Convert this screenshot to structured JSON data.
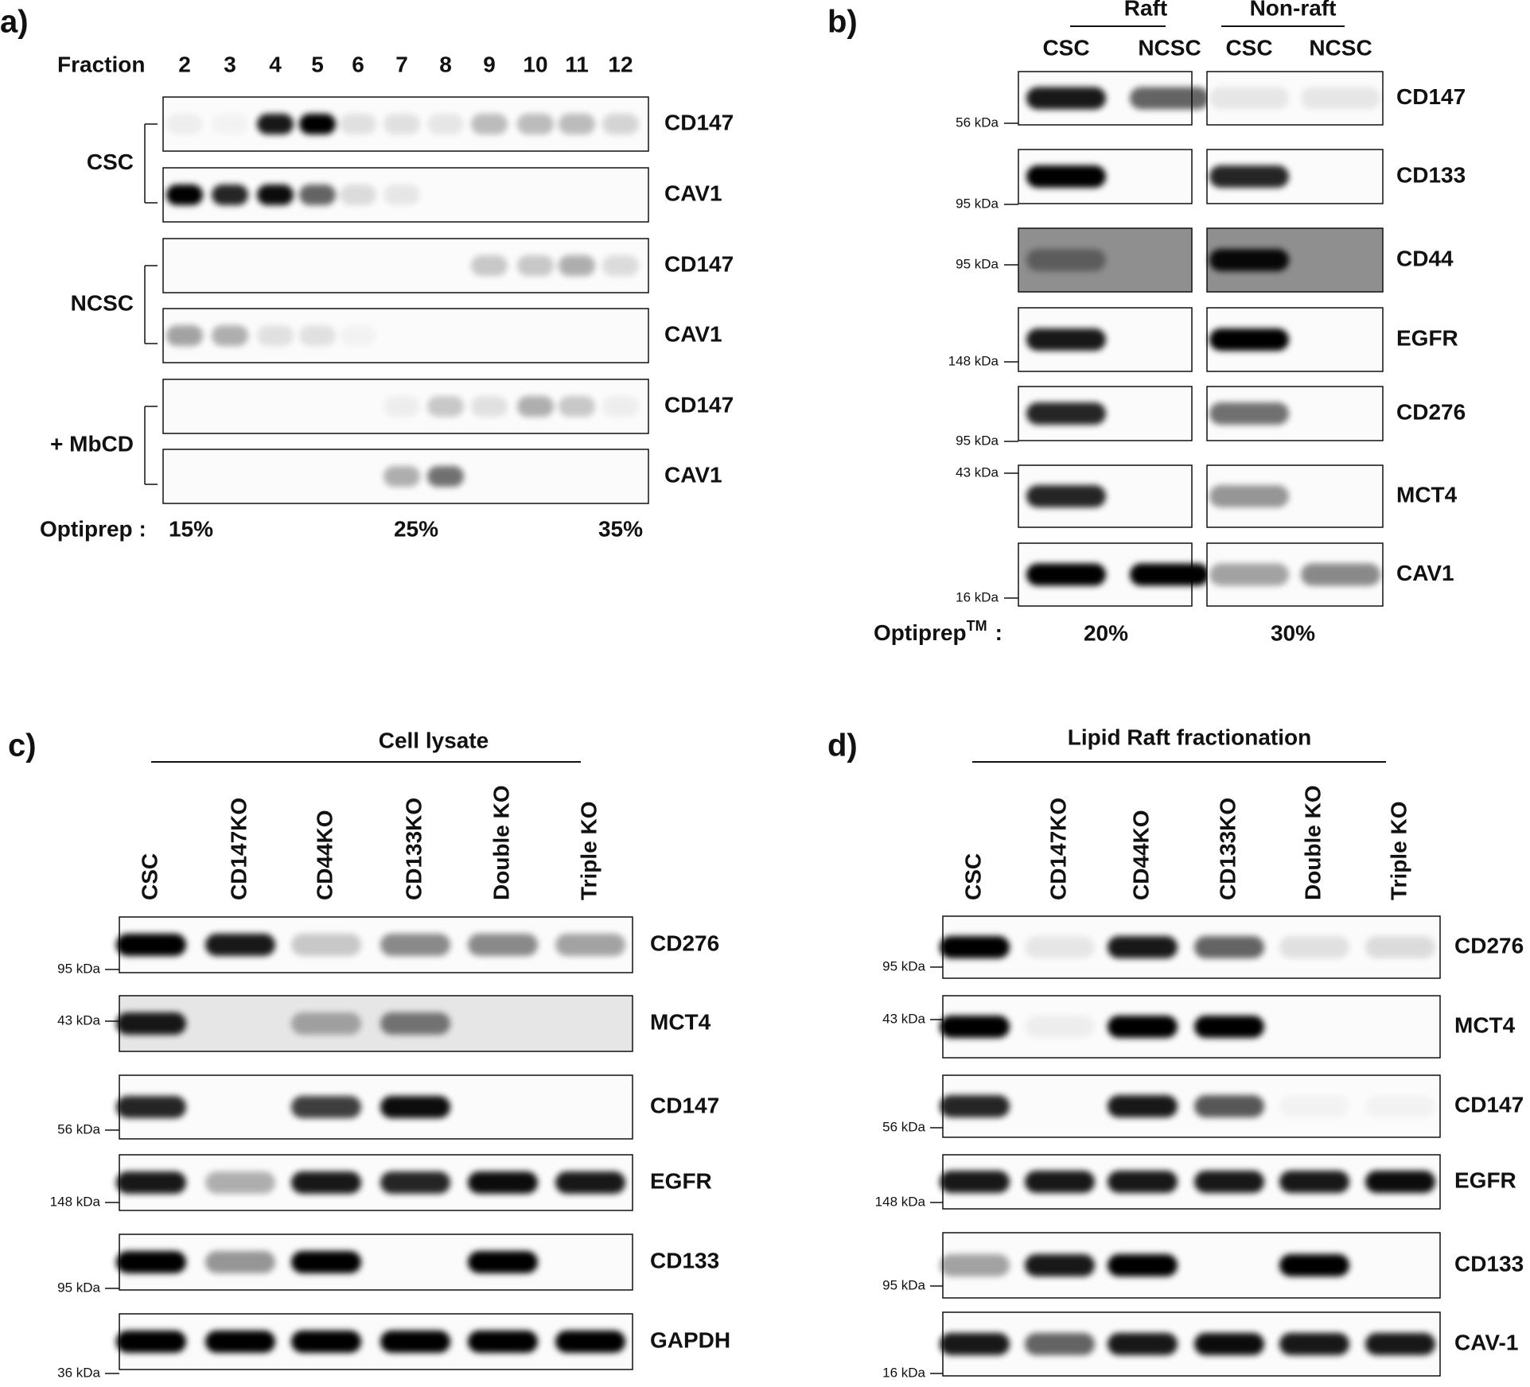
{
  "panel_a": {
    "label": "a)",
    "fraction_header": "Fraction",
    "fractions": [
      "2",
      "3",
      "4",
      "5",
      "6",
      "7",
      "8",
      "9",
      "10",
      "11",
      "12"
    ],
    "groups": [
      {
        "name": "CSC",
        "blots": [
          "CD147",
          "CAV1"
        ]
      },
      {
        "name": "NCSC",
        "blots": [
          "CD147",
          "CAV1"
        ]
      },
      {
        "name": "+ MbCD",
        "blots": [
          "CD147",
          "CAV1"
        ]
      }
    ],
    "optiprep_label": "Optiprep :",
    "optiprep_values": [
      "15%",
      "25%",
      "35%"
    ]
  },
  "panel_b": {
    "label": "b)",
    "sections": [
      {
        "name": "Raft",
        "columns": [
          "CSC",
          "NCSC"
        ]
      },
      {
        "name": "Non-raft",
        "columns": [
          "CSC",
          "NCSC"
        ]
      }
    ],
    "blots": [
      {
        "name": "CD147",
        "marker": "56 kDa"
      },
      {
        "name": "CD133",
        "marker": "95 kDa"
      },
      {
        "name": "CD44",
        "marker": "95 kDa"
      },
      {
        "name": "EGFR",
        "marker": "148 kDa"
      },
      {
        "name": "CD276",
        "marker": "95 kDa"
      },
      {
        "name": "MCT4",
        "marker": "43 kDa"
      },
      {
        "name": "CAV1",
        "marker": "16 kDa"
      }
    ],
    "optiprep_label": "Optiprep",
    "optiprep_superscript": "TM",
    "optiprep_colon": ":",
    "optiprep_values": [
      "20%",
      "30%"
    ]
  },
  "panel_c": {
    "label": "c)",
    "title": "Cell lysate",
    "columns": [
      "CSC",
      "CD147KO",
      "CD44KO",
      "CD133KO",
      "Double KO",
      "Triple KO"
    ],
    "blots": [
      {
        "name": "CD276",
        "marker": "95 kDa"
      },
      {
        "name": "MCT4",
        "marker": "43 kDa"
      },
      {
        "name": "CD147",
        "marker": "56 kDa"
      },
      {
        "name": "EGFR",
        "marker": "148 kDa"
      },
      {
        "name": "CD133",
        "marker": "95 kDa"
      },
      {
        "name": "GAPDH",
        "marker": "36 kDa"
      }
    ]
  },
  "panel_d": {
    "label": "d)",
    "title": "Lipid Raft fractionation",
    "columns": [
      "CSC",
      "CD147KO",
      "CD44KO",
      "CD133KO",
      "Double KO",
      "Triple KO"
    ],
    "blots": [
      {
        "name": "CD276",
        "marker": "95 kDa"
      },
      {
        "name": "MCT4",
        "marker": "43 kDa"
      },
      {
        "name": "CD147",
        "marker": "56 kDa"
      },
      {
        "name": "EGFR",
        "marker": "148 kDa"
      },
      {
        "name": "CD133",
        "marker": "95 kDa"
      },
      {
        "name": "CAV-1",
        "marker": "16 kDa"
      }
    ]
  }
}
